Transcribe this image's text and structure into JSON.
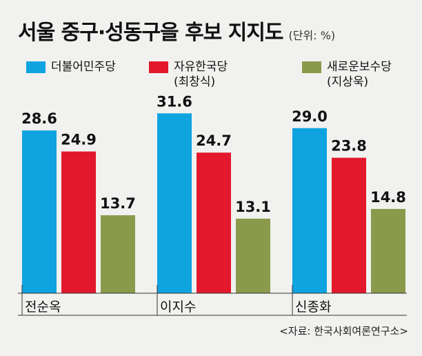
{
  "header": {
    "title": "서울 중구·성동구을 후보 지지도",
    "unit": "(단위: %)"
  },
  "legend": [
    {
      "party": "더불어민주당",
      "candidate": "",
      "color": "#0fa3e0"
    },
    {
      "party": "자유한국당",
      "candidate": "(최창식)",
      "color": "#e3182d"
    },
    {
      "party": "새로운보수당",
      "candidate": "(지상욱)",
      "color": "#8a9a4b"
    }
  ],
  "source": "<자료: 한국사회여론연구소>",
  "chart_data": {
    "type": "bar",
    "title": "서울 중구·성동구을 후보 지지도",
    "unit": "(단위: %)",
    "categories": [
      "전순옥",
      "이지수",
      "신종화"
    ],
    "series": [
      {
        "name": "더불어민주당",
        "color": "#0fa3e0",
        "values": [
          28.6,
          31.6,
          29.0
        ]
      },
      {
        "name": "자유한국당",
        "color": "#e3182d",
        "values": [
          24.9,
          24.7,
          23.8
        ]
      },
      {
        "name": "새로운보수당",
        "color": "#8a9a4b",
        "values": [
          13.7,
          13.1,
          14.8
        ]
      }
    ],
    "ylim": [
      0,
      33
    ],
    "grid": false,
    "legend_position": "top",
    "source": "<자료: 한국사회여론연구소>"
  }
}
